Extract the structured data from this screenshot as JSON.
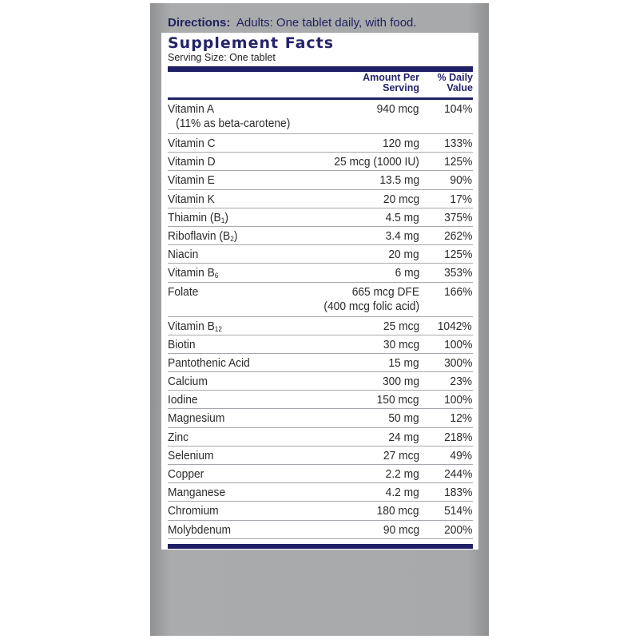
{
  "directions": {
    "label": "Directions:",
    "text": "Adults:  One tablet daily, with food."
  },
  "facts": {
    "title": "Supplement Facts",
    "serving_size": "Serving Size: One tablet",
    "col_amount_1": "Amount Per",
    "col_amount_2": "Serving",
    "col_dv_1": "% Daily",
    "col_dv_2": "Value",
    "rows": [
      {
        "name": "Vitamin A",
        "sub": "(11% as beta-carotene)",
        "amount": "940 mcg",
        "dv": "104%"
      },
      {
        "name": "Vitamin C",
        "amount": "120 mg",
        "dv": "133%"
      },
      {
        "name": "Vitamin D",
        "amount": "25 mcg (1000 IU)",
        "dv": "125%"
      },
      {
        "name": "Vitamin E",
        "amount": "13.5 mg",
        "dv": "90%"
      },
      {
        "name": "Vitamin K",
        "amount": "20 mcg",
        "dv": "17%"
      },
      {
        "name": "Thiamin (B",
        "subscript": "1",
        "suffix": ")",
        "amount": "4.5 mg",
        "dv": "375%"
      },
      {
        "name": "Riboflavin (B",
        "subscript": "2",
        "suffix": ")",
        "amount": "3.4 mg",
        "dv": "262%"
      },
      {
        "name": "Niacin",
        "amount": "20 mg",
        "dv": "125%"
      },
      {
        "name": "Vitamin B",
        "subscript": "6",
        "suffix": "",
        "amount": "6 mg",
        "dv": "353%"
      },
      {
        "name": "Folate",
        "amount": "665 mcg DFE",
        "amount2": "(400 mcg folic acid)",
        "dv": "166%"
      },
      {
        "name": "Vitamin B",
        "subscript": "12",
        "suffix": "",
        "amount": "25 mcg",
        "dv": "1042%"
      },
      {
        "name": "Biotin",
        "amount": "30 mcg",
        "dv": "100%"
      },
      {
        "name": "Pantothenic Acid",
        "amount": "15 mg",
        "dv": "300%"
      },
      {
        "name": "Calcium",
        "amount": "300 mg",
        "dv": "23%"
      },
      {
        "name": "Iodine",
        "amount": "150 mcg",
        "dv": "100%"
      },
      {
        "name": "Magnesium",
        "amount": "50 mg",
        "dv": "12%"
      },
      {
        "name": "Zinc",
        "amount": "24 mg",
        "dv": "218%"
      },
      {
        "name": "Selenium",
        "amount": "27 mcg",
        "dv": "49%"
      },
      {
        "name": "Copper",
        "amount": "2.2 mg",
        "dv": "244%"
      },
      {
        "name": "Manganese",
        "amount": "4.2 mg",
        "dv": "183%"
      },
      {
        "name": "Chromium",
        "amount": "180 mcg",
        "dv": "514%"
      },
      {
        "name": "Molybdenum",
        "amount": "90 mcg",
        "dv": "200%"
      }
    ]
  },
  "colors": {
    "navy": "#1f1f66",
    "panel_gray": "#a7a9ab"
  }
}
